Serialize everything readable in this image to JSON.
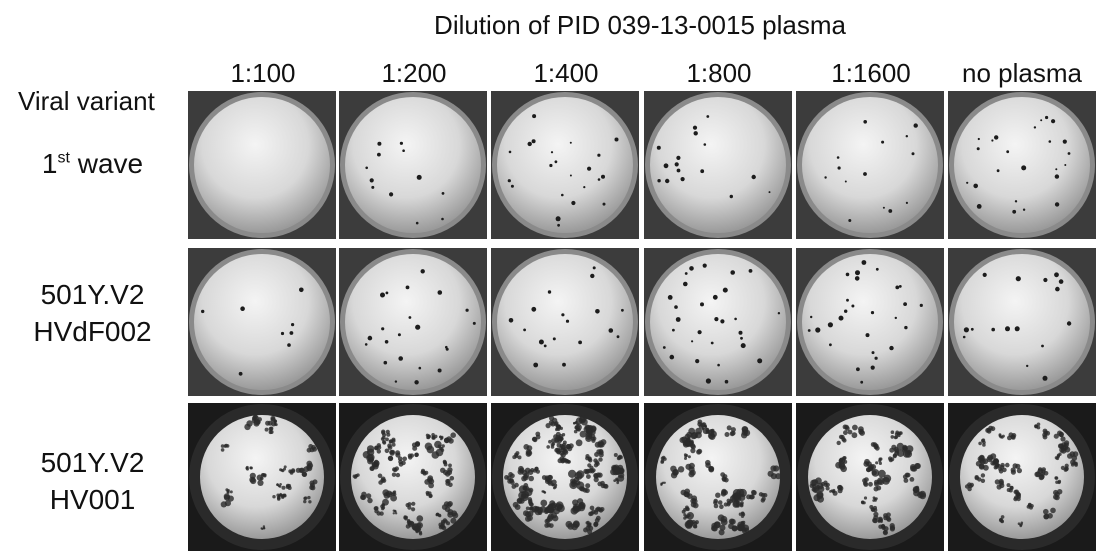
{
  "figure": {
    "title": "Dilution of PID 039-13-0015 plasma",
    "row_header": "Viral variant",
    "columns": [
      "1:100",
      "1:200",
      "1:400",
      "1:800",
      "1:1600",
      "no plasma"
    ],
    "rows": [
      {
        "label_line1": "1",
        "label_sup": "st",
        "label_rest": " wave",
        "label_line2": ""
      },
      {
        "label_line1": "501Y.V2",
        "label_sup": "",
        "label_rest": "",
        "label_line2": "HVdF002"
      },
      {
        "label_line1": "501Y.V2",
        "label_sup": "",
        "label_rest": "",
        "label_line2": "HV001"
      }
    ]
  }
}
